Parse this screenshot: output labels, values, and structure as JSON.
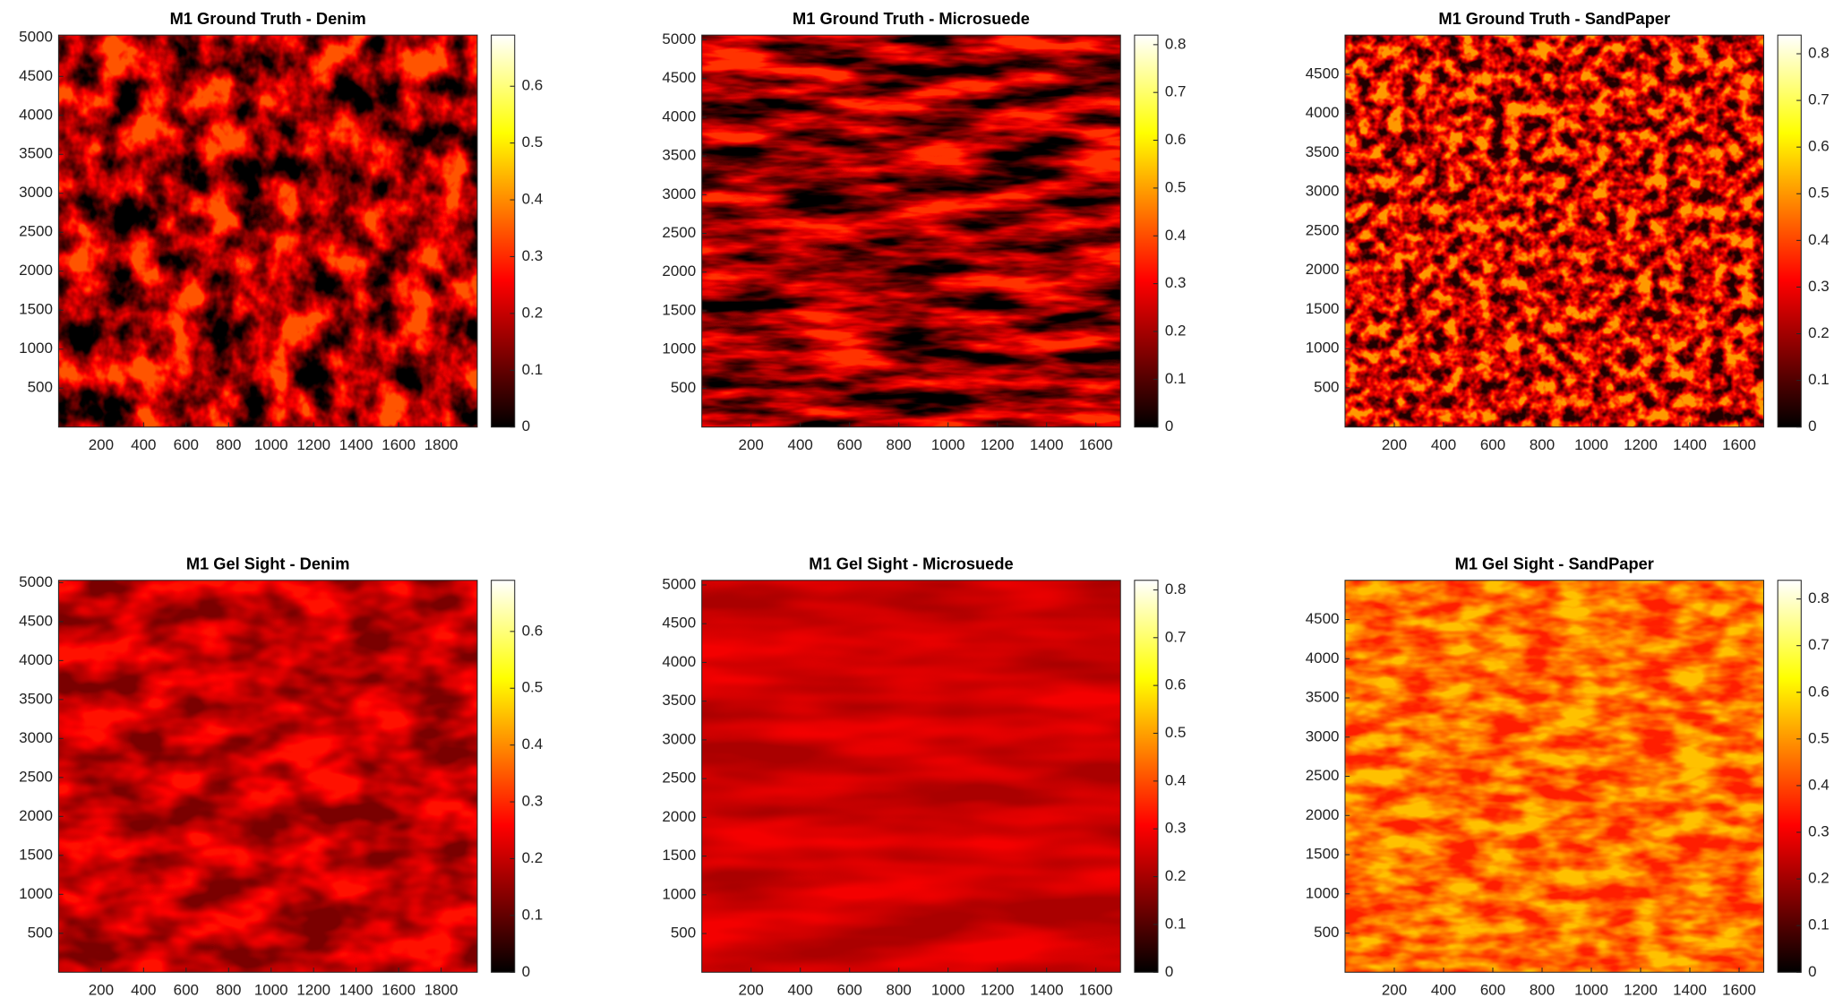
{
  "chart_data": [
    {
      "type": "heatmap",
      "title": "M1 Ground Truth - Denim",
      "colormap": "hot",
      "xlim": [
        0,
        1970
      ],
      "ylim": [
        0,
        5030
      ],
      "xticks": [
        200,
        400,
        600,
        800,
        1000,
        1200,
        1400,
        1600,
        1800
      ],
      "yticks": [
        500,
        1000,
        1500,
        2000,
        2500,
        3000,
        3500,
        4000,
        4500,
        5000
      ],
      "colorbar": {
        "clim": [
          0,
          0.69
        ],
        "ticks": [
          0,
          0.1,
          0.2,
          0.3,
          0.4,
          0.5,
          0.6
        ]
      }
    },
    {
      "type": "heatmap",
      "title": "M1 Ground Truth - Microsuede",
      "colormap": "hot",
      "xlim": [
        0,
        1700
      ],
      "ylim": [
        0,
        5060
      ],
      "xticks": [
        200,
        400,
        600,
        800,
        1000,
        1200,
        1400,
        1600
      ],
      "yticks": [
        500,
        1000,
        1500,
        2000,
        2500,
        3000,
        3500,
        4000,
        4500,
        5000
      ],
      "colorbar": {
        "clim": [
          0,
          0.82
        ],
        "ticks": [
          0,
          0.1,
          0.2,
          0.3,
          0.4,
          0.5,
          0.6,
          0.7,
          0.8
        ]
      }
    },
    {
      "type": "heatmap",
      "title": "M1 Ground Truth - SandPaper",
      "colormap": "hot",
      "xlim": [
        0,
        1700
      ],
      "ylim": [
        0,
        5000
      ],
      "xticks": [
        200,
        400,
        600,
        800,
        1000,
        1200,
        1400,
        1600
      ],
      "yticks": [
        500,
        1000,
        1500,
        2000,
        2500,
        3000,
        3500,
        4000,
        4500
      ],
      "colorbar": {
        "clim": [
          0,
          0.84
        ],
        "ticks": [
          0,
          0.1,
          0.2,
          0.3,
          0.4,
          0.5,
          0.6,
          0.7,
          0.8
        ]
      }
    },
    {
      "type": "heatmap",
      "title": "M1 Gel Sight - Denim",
      "colormap": "hot",
      "xlim": [
        0,
        1970
      ],
      "ylim": [
        0,
        5030
      ],
      "xticks": [
        200,
        400,
        600,
        800,
        1000,
        1200,
        1400,
        1600,
        1800
      ],
      "yticks": [
        500,
        1000,
        1500,
        2000,
        2500,
        3000,
        3500,
        4000,
        4500,
        5000
      ],
      "colorbar": {
        "clim": [
          0,
          0.69
        ],
        "ticks": [
          0,
          0.1,
          0.2,
          0.3,
          0.4,
          0.5,
          0.6
        ]
      }
    },
    {
      "type": "heatmap",
      "title": "M1 Gel Sight - Microsuede",
      "colormap": "hot",
      "xlim": [
        0,
        1700
      ],
      "ylim": [
        0,
        5060
      ],
      "xticks": [
        200,
        400,
        600,
        800,
        1000,
        1200,
        1400,
        1600
      ],
      "yticks": [
        500,
        1000,
        1500,
        2000,
        2500,
        3000,
        3500,
        4000,
        4500,
        5000
      ],
      "colorbar": {
        "clim": [
          0,
          0.82
        ],
        "ticks": [
          0,
          0.1,
          0.2,
          0.3,
          0.4,
          0.5,
          0.6,
          0.7,
          0.8
        ]
      }
    },
    {
      "type": "heatmap",
      "title": "M1 Gel Sight - SandPaper",
      "colormap": "hot",
      "xlim": [
        0,
        1700
      ],
      "ylim": [
        0,
        5000
      ],
      "xticks": [
        200,
        400,
        600,
        800,
        1000,
        1200,
        1400,
        1600
      ],
      "yticks": [
        500,
        1000,
        1500,
        2000,
        2500,
        3000,
        3500,
        4000,
        4500
      ],
      "colorbar": {
        "clim": [
          0,
          0.84
        ],
        "ticks": [
          0,
          0.1,
          0.2,
          0.3,
          0.4,
          0.5,
          0.6,
          0.7,
          0.8
        ]
      }
    }
  ]
}
